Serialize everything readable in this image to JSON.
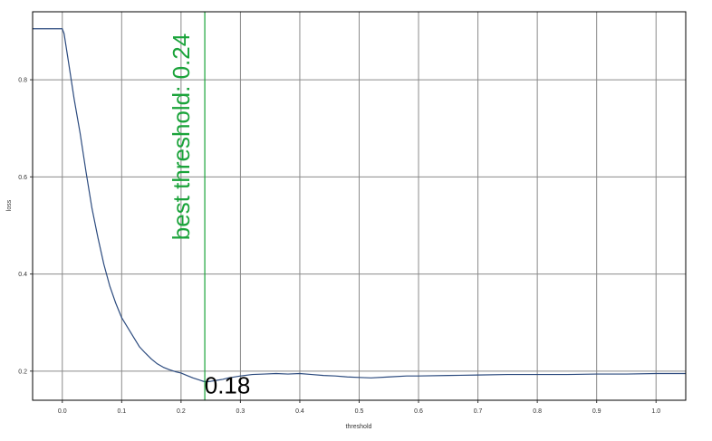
{
  "chart_data": {
    "type": "line",
    "title": "",
    "xlabel": "threshold",
    "ylabel": "loss",
    "xlim": [
      -0.05,
      1.05
    ],
    "ylim": [
      0.14,
      0.94
    ],
    "x_ticks": [
      0.0,
      0.1,
      0.2,
      0.3,
      0.4,
      0.5,
      0.6,
      0.7,
      0.8,
      0.9,
      1.0
    ],
    "x_tick_labels": [
      "0.0",
      "0.1",
      "0.2",
      "0.3",
      "0.4",
      "0.5",
      "0.6",
      "0.7",
      "0.8",
      "0.9",
      "1.0"
    ],
    "y_ticks": [
      0.2,
      0.4,
      0.6,
      0.8
    ],
    "y_tick_labels": [
      "0.2",
      "0.4",
      "0.6",
      "0.8"
    ],
    "grid": true,
    "series": [
      {
        "color": "#2b4a7e",
        "x": [
          -0.05,
          0.0,
          0.003,
          0.01,
          0.02,
          0.03,
          0.04,
          0.05,
          0.06,
          0.07,
          0.08,
          0.09,
          0.1,
          0.11,
          0.12,
          0.13,
          0.14,
          0.15,
          0.16,
          0.17,
          0.18,
          0.19,
          0.2,
          0.21,
          0.22,
          0.23,
          0.24,
          0.25,
          0.26,
          0.27,
          0.28,
          0.3,
          0.32,
          0.34,
          0.36,
          0.38,
          0.4,
          0.42,
          0.44,
          0.46,
          0.48,
          0.5,
          0.52,
          0.55,
          0.58,
          0.6,
          0.65,
          0.7,
          0.75,
          0.8,
          0.85,
          0.9,
          0.95,
          1.0,
          1.05
        ],
        "y": [
          0.905,
          0.905,
          0.895,
          0.84,
          0.76,
          0.69,
          0.61,
          0.535,
          0.475,
          0.42,
          0.375,
          0.34,
          0.31,
          0.29,
          0.27,
          0.25,
          0.237,
          0.225,
          0.215,
          0.208,
          0.203,
          0.199,
          0.196,
          0.191,
          0.186,
          0.182,
          0.178,
          0.179,
          0.181,
          0.183,
          0.186,
          0.19,
          0.193,
          0.194,
          0.195,
          0.194,
          0.195,
          0.193,
          0.191,
          0.19,
          0.188,
          0.187,
          0.186,
          0.188,
          0.19,
          0.19,
          0.191,
          0.192,
          0.193,
          0.193,
          0.193,
          0.194,
          0.194,
          0.195,
          0.195
        ]
      }
    ],
    "annotations": [
      {
        "type": "vline",
        "x": 0.24,
        "color": "#1aa33a",
        "label": "best threshold: 0.24"
      },
      {
        "type": "text",
        "x": 0.27,
        "y": 0.178,
        "text": "0.18",
        "color": "#000000"
      }
    ]
  }
}
